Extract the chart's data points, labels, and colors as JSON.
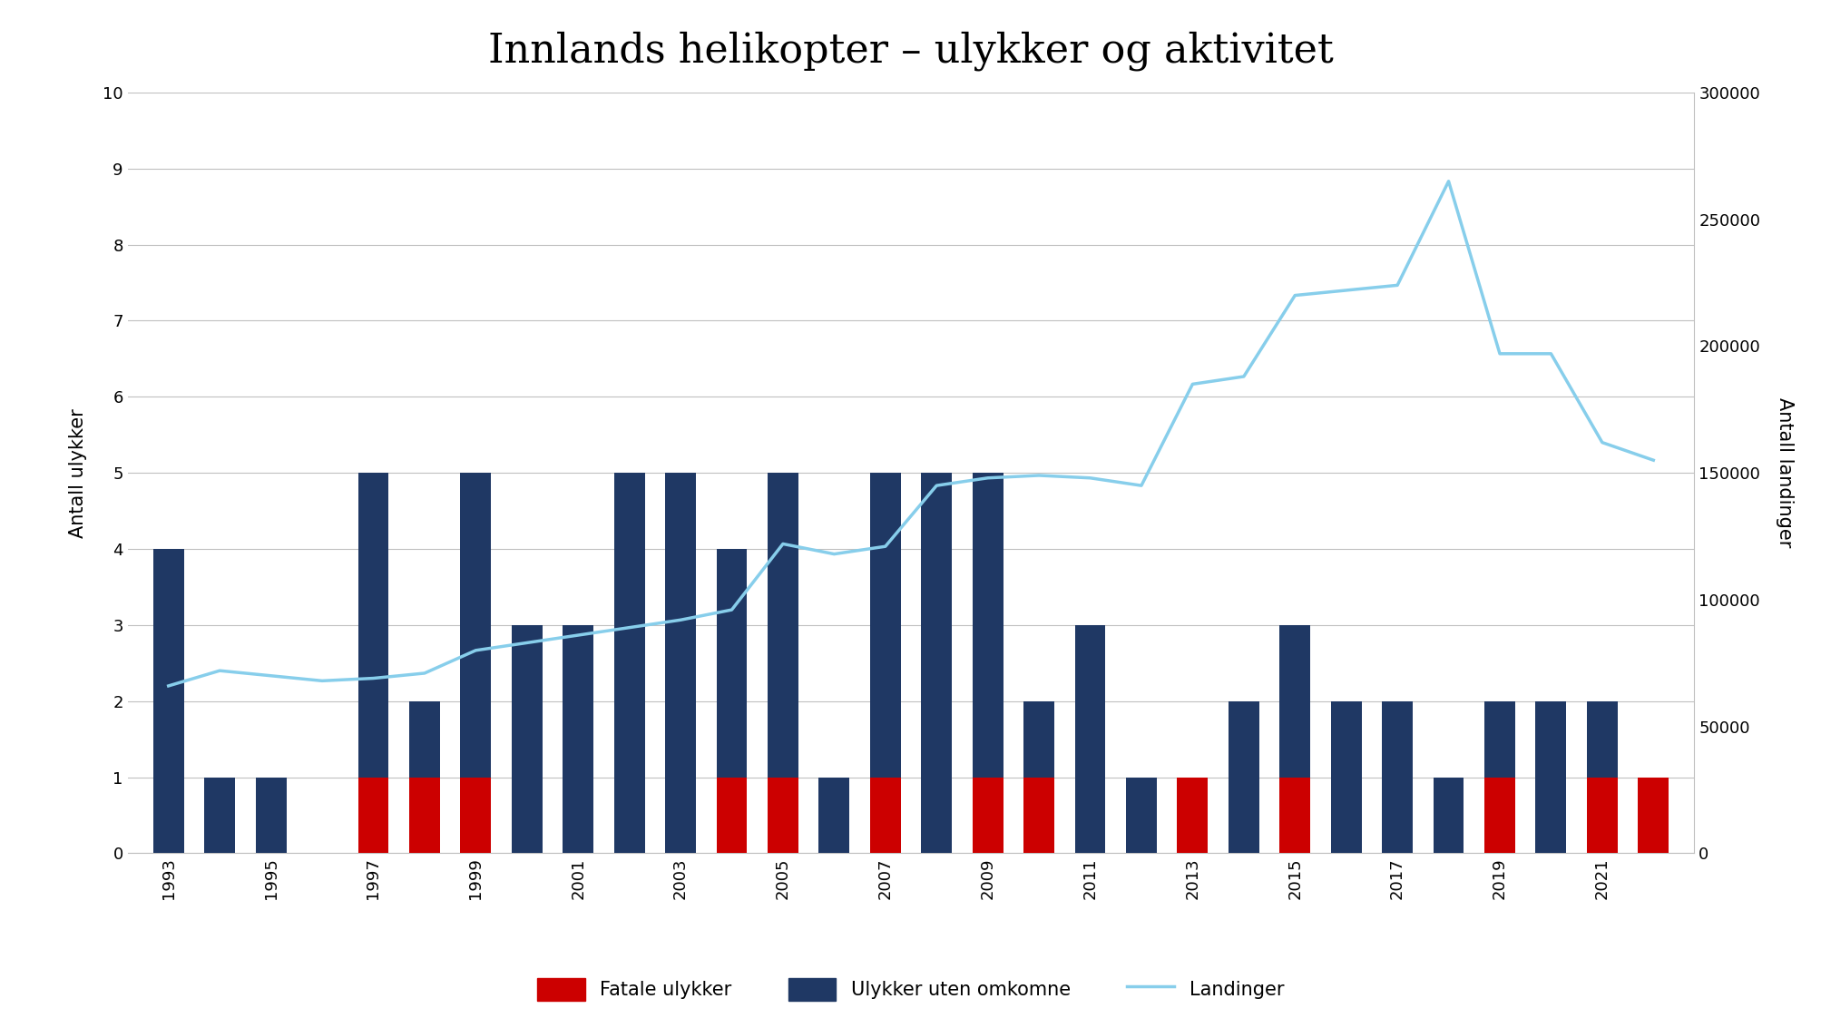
{
  "title": "Innlands helikopter – ulykker og aktivitet",
  "years": [
    1993,
    1994,
    1995,
    1996,
    1997,
    1998,
    1999,
    2000,
    2001,
    2002,
    2003,
    2004,
    2005,
    2006,
    2007,
    2008,
    2009,
    2010,
    2011,
    2012,
    2013,
    2014,
    2015,
    2016,
    2017,
    2018,
    2019,
    2020,
    2021,
    2022
  ],
  "fatal": [
    0,
    0,
    0,
    0,
    1,
    1,
    1,
    0,
    0,
    0,
    0,
    1,
    1,
    0,
    1,
    0,
    1,
    1,
    0,
    0,
    1,
    0,
    1,
    0,
    0,
    0,
    1,
    0,
    1,
    1
  ],
  "non_fatal": [
    4,
    1,
    1,
    0,
    4,
    1,
    4,
    3,
    3,
    5,
    5,
    3,
    4,
    1,
    4,
    5,
    4,
    1,
    3,
    1,
    0,
    2,
    2,
    2,
    2,
    1,
    1,
    2,
    1,
    0
  ],
  "landings": [
    66000,
    72000,
    70000,
    68000,
    69000,
    71000,
    80000,
    83000,
    86000,
    89000,
    92000,
    96000,
    122000,
    118000,
    121000,
    145000,
    148000,
    149000,
    148000,
    145000,
    185000,
    188000,
    220000,
    222000,
    224000,
    265000,
    197000,
    197000,
    162000,
    155000
  ],
  "ylabel_left": "Antall ulykker",
  "ylabel_right": "Antall landinger",
  "ylim_left": [
    0,
    10
  ],
  "ylim_right": [
    0,
    300000
  ],
  "yticks_left": [
    0,
    1,
    2,
    3,
    4,
    5,
    6,
    7,
    8,
    9,
    10
  ],
  "yticks_right": [
    0,
    50000,
    100000,
    150000,
    200000,
    250000,
    300000
  ],
  "bar_color_fatal": "#CC0000",
  "bar_color_nonfatal": "#1F3864",
  "line_color": "#87CEEB",
  "background_color": "#FFFFFF",
  "legend_fatal": "Fatale ulykker",
  "legend_nonfatal": "Ulykker uten omkomne",
  "legend_landings": "Landinger",
  "title_fontsize": 32,
  "axis_label_fontsize": 15,
  "tick_fontsize": 13,
  "legend_fontsize": 15
}
